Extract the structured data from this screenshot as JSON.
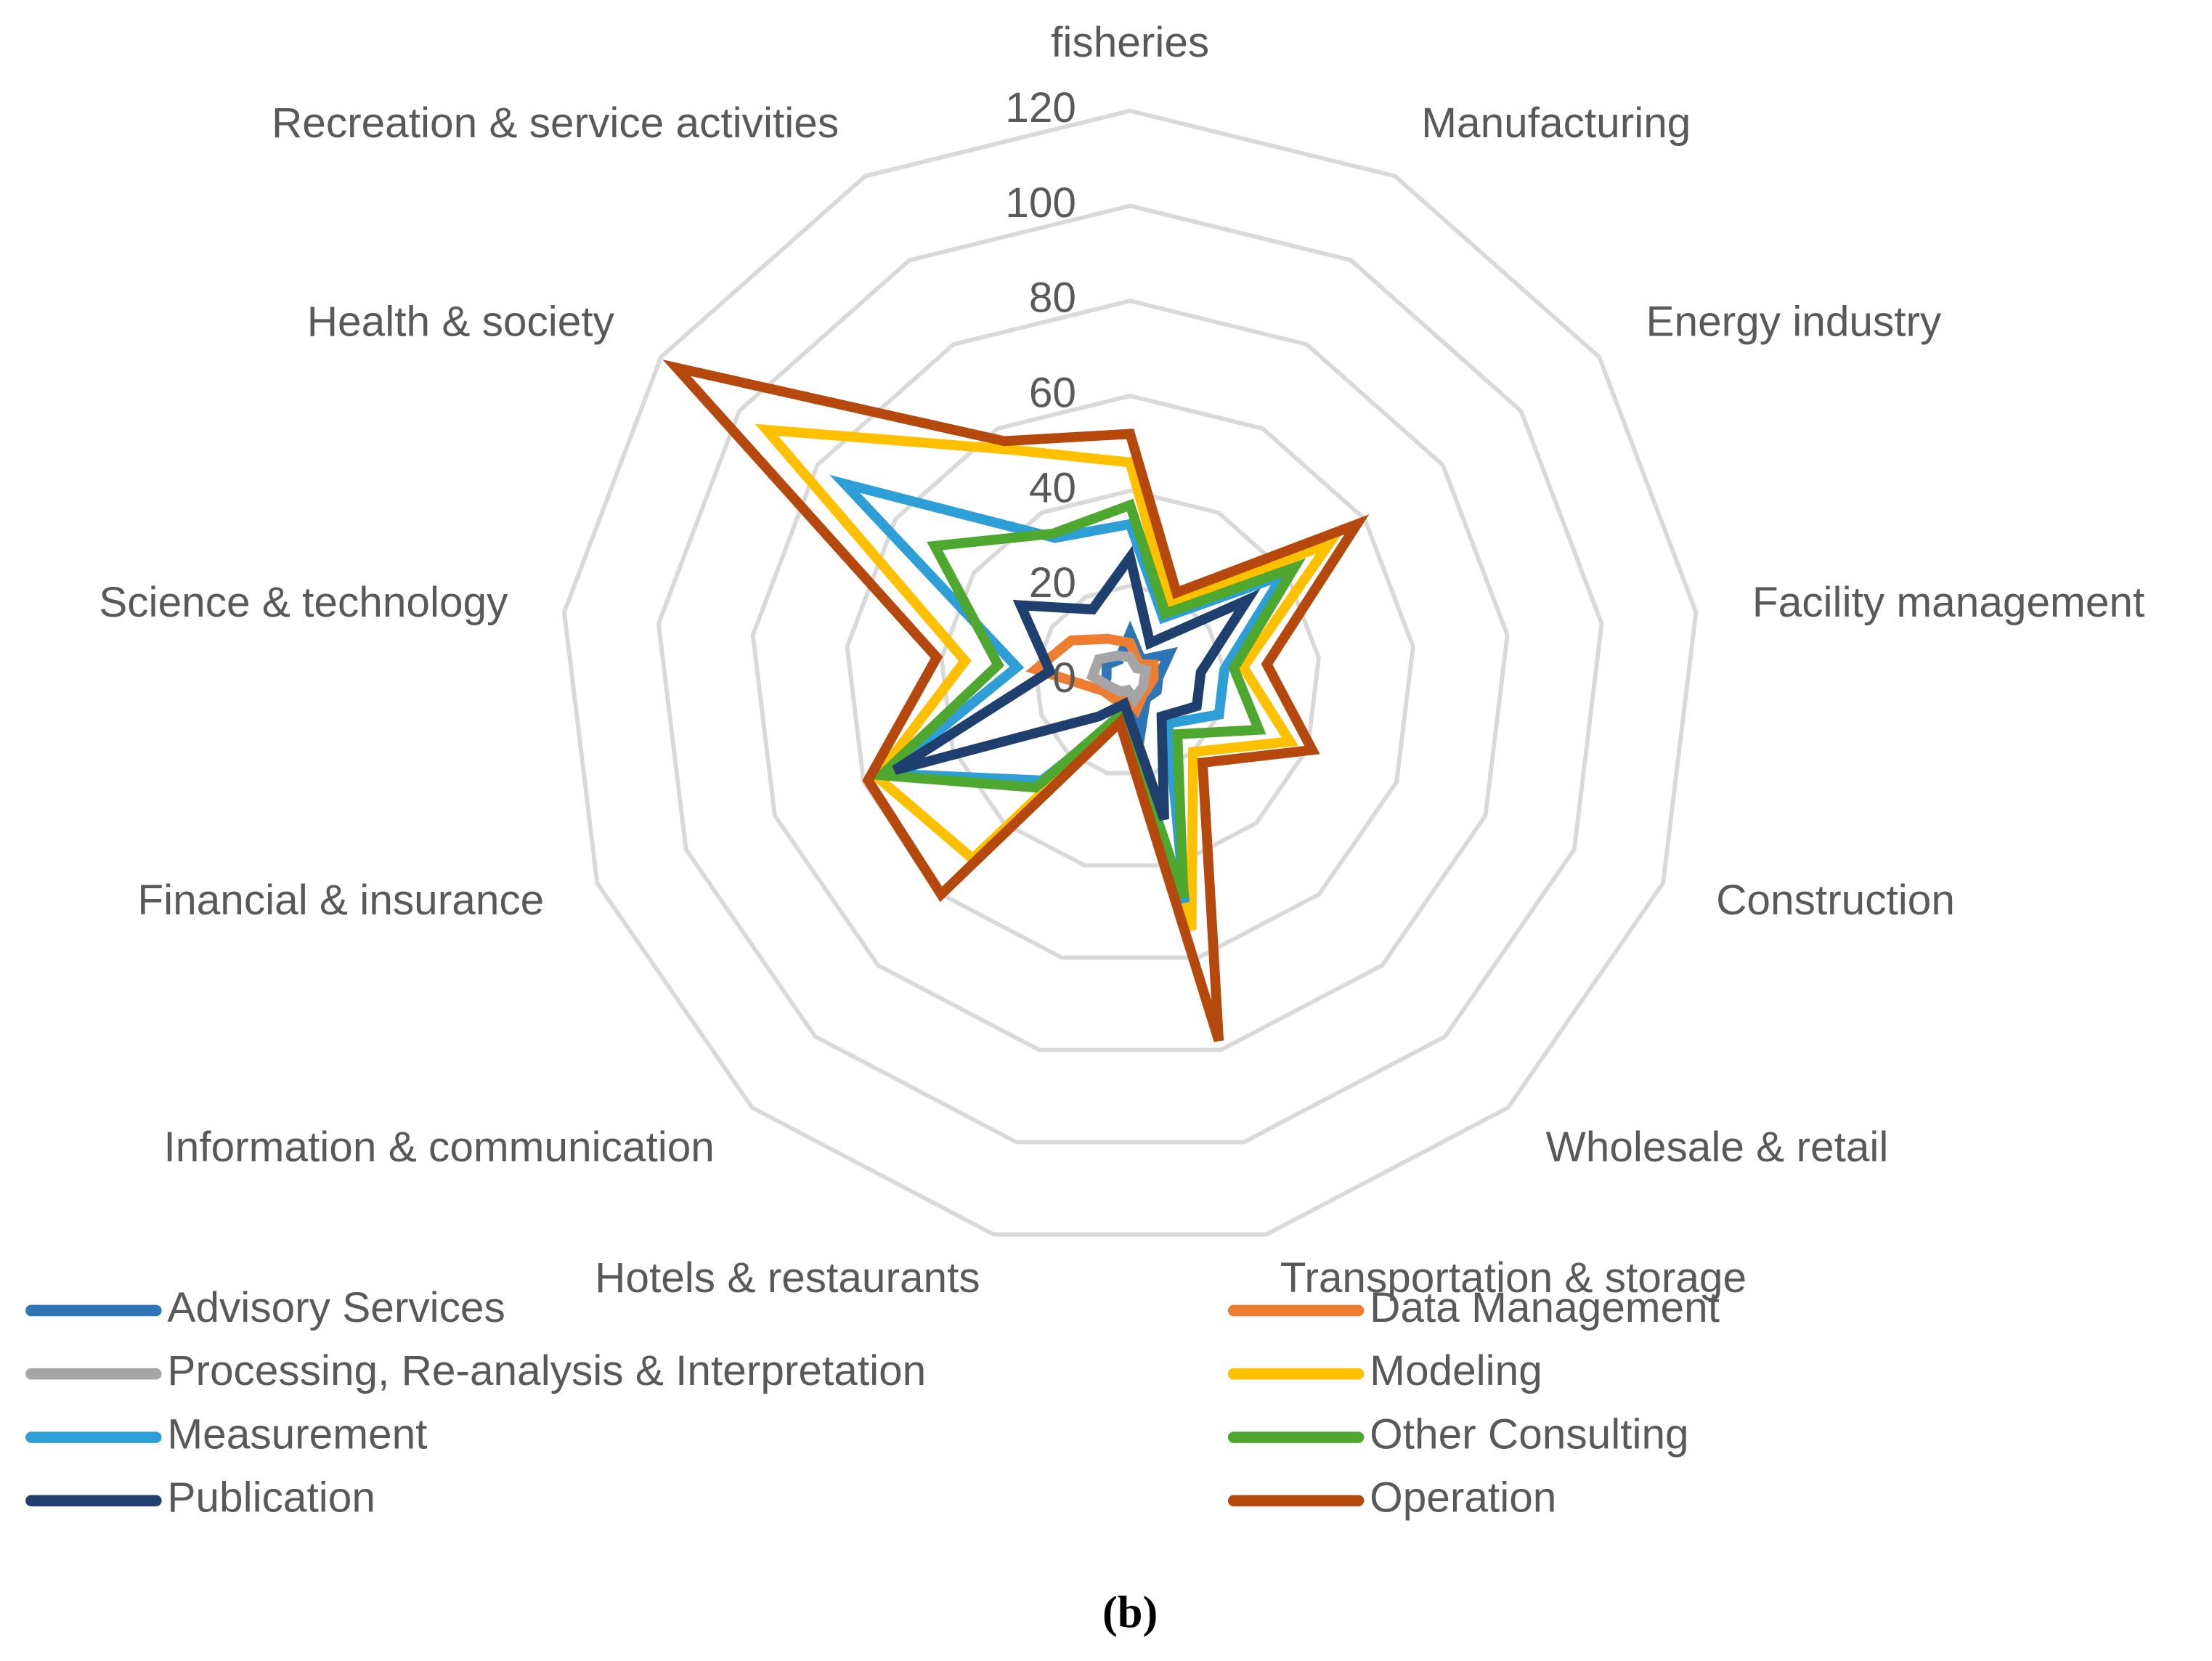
{
  "chart_data": {
    "type": "radar",
    "categories": [
      "fisheries",
      "Manufacturing",
      "Energy industry",
      "Facility management",
      "Construction",
      "Wholesale & retail",
      "Transportation & storage",
      "Hotels & restaurants",
      "Information & communication",
      "Financial & insurance",
      "Science & technology",
      "Health & society",
      "Recreation & service activities"
    ],
    "ylim": [
      0,
      120
    ],
    "yticks": [
      0,
      20,
      40,
      60,
      80,
      100,
      120
    ],
    "grid": true,
    "legend": "bottom",
    "caption": "(b)",
    "series": [
      {
        "name": "Advisory Services",
        "color": "#2e75b6",
        "values": [
          10,
          5,
          10,
          6,
          6,
          5,
          10,
          3,
          5,
          6,
          5,
          6,
          5
        ]
      },
      {
        "name": "Data Management",
        "color": "#ed7d31",
        "values": [
          8,
          4,
          6,
          5,
          4,
          4,
          6,
          3,
          5,
          6,
          20,
          15,
          10
        ]
      },
      {
        "name": "Processing, Re-analysis & Interpretation",
        "color": "#a5a5a5",
        "values": [
          5,
          3,
          4,
          3,
          3,
          3,
          4,
          2,
          3,
          4,
          8,
          8,
          6
        ]
      },
      {
        "name": "Modeling",
        "color": "#ffc000",
        "values": [
          46,
          18,
          51,
          24,
          36,
          20,
          54,
          8,
          50,
          57,
          35,
          93,
          55
        ]
      },
      {
        "name": "Measurement",
        "color": "#2e9ed6",
        "values": [
          33,
          15,
          39,
          20,
          20,
          12,
          48,
          8,
          28,
          55,
          24,
          73,
          34
        ]
      },
      {
        "name": "Other Consulting",
        "color": "#4ea72e",
        "values": [
          37,
          16,
          42,
          22,
          29,
          15,
          47,
          7,
          30,
          56,
          28,
          50,
          35
        ]
      },
      {
        "name": "Publication",
        "color": "#1f3f6e",
        "values": [
          26,
          9,
          30,
          15,
          15,
          10,
          30,
          5,
          10,
          53,
          17,
          28,
          17
        ]
      },
      {
        "name": "Operation",
        "color": "#b5480c",
        "values": [
          52,
          21,
          58,
          29,
          41,
          23,
          78,
          9,
          60,
          59,
          41,
          116,
          57
        ]
      }
    ]
  }
}
